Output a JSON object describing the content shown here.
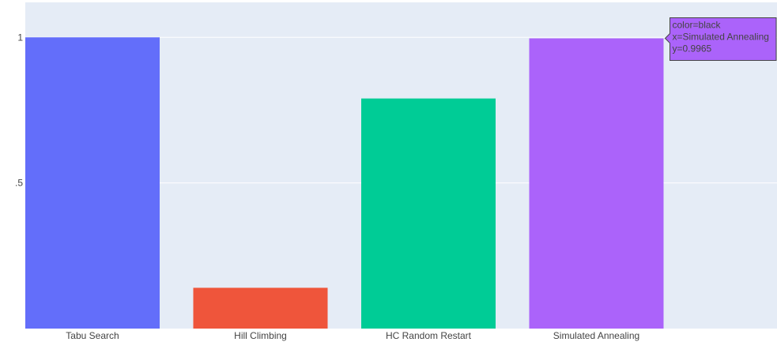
{
  "chart_data": {
    "type": "bar",
    "categories": [
      "Tabu Search",
      "Hill Climbing",
      "HC Random Restart",
      "Simulated Annealing"
    ],
    "values": [
      1.0,
      0.14,
      0.79,
      0.9965
    ],
    "bar_colors": [
      "#636efa",
      "#ef553b",
      "#00cc96",
      "#ab63fa"
    ],
    "yticks": [
      {
        "value": 0.5,
        "label": ".5"
      },
      {
        "value": 1,
        "label": "1"
      }
    ],
    "ylim": [
      0,
      1.12
    ],
    "grid": true,
    "plot_background": "#e5ecf6",
    "gridline_color": "#ffffff"
  },
  "tooltip": {
    "lines": [
      "color=black",
      "x=Simulated Annealing",
      "y=0.9965"
    ],
    "target_index": 3,
    "background": "#ab63fa"
  }
}
